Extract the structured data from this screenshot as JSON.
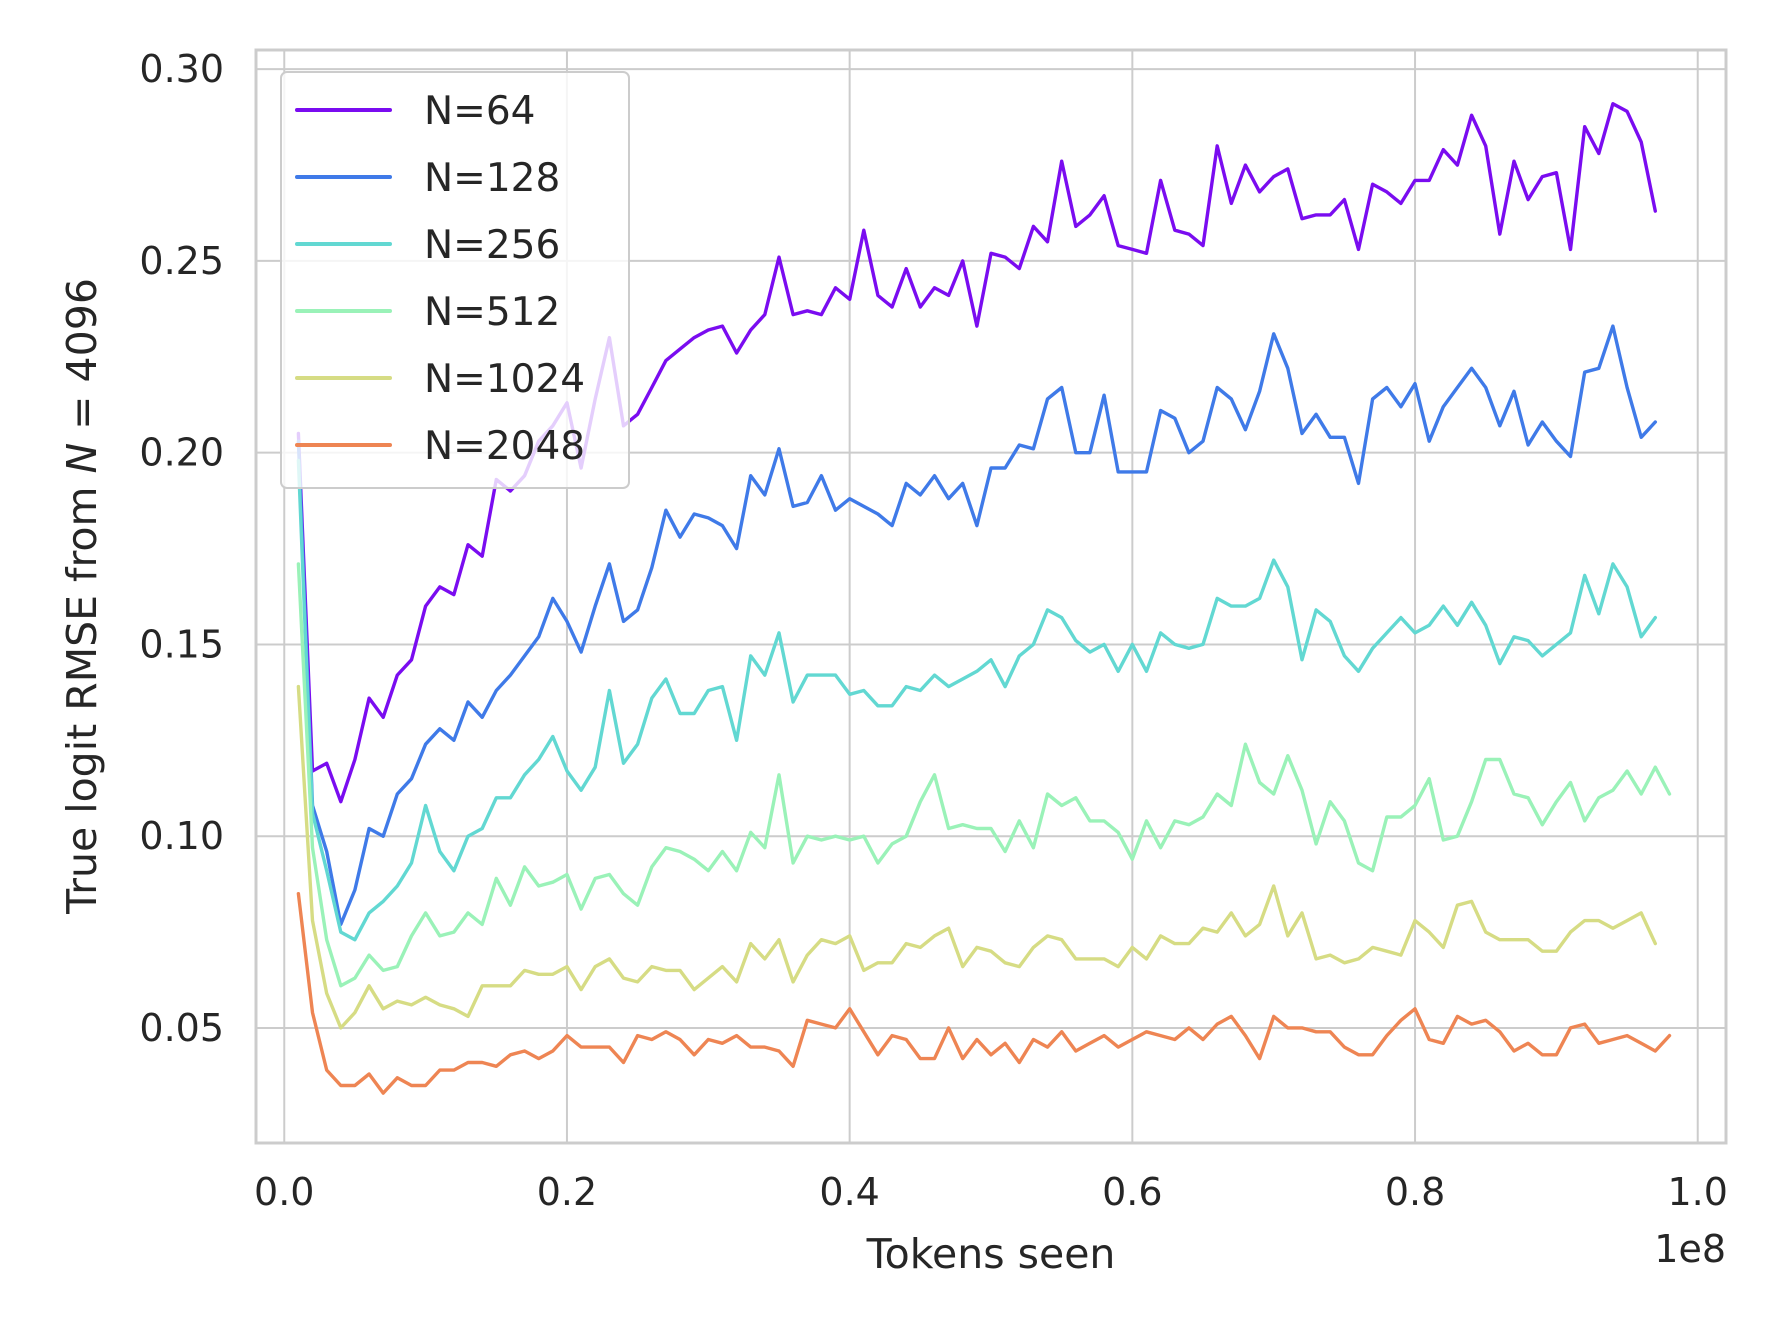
{
  "chart_data": {
    "type": "line",
    "xlabel": "Tokens seen",
    "ylabel_parts": [
      "True logit RMSE from ",
      "N",
      " = 4096"
    ],
    "x_offset_label": "1e8",
    "xlim": [
      -0.02,
      1.02
    ],
    "ylim": [
      0.02,
      0.305
    ],
    "x_ticks": [
      0.0,
      0.2,
      0.4,
      0.6,
      0.8,
      1.0
    ],
    "x_tick_labels": [
      "0.0",
      "0.2",
      "0.4",
      "0.6",
      "0.8",
      "1.0"
    ],
    "y_ticks": [
      0.05,
      0.1,
      0.15,
      0.2,
      0.25,
      0.3
    ],
    "y_tick_labels": [
      "0.05",
      "0.10",
      "0.15",
      "0.20",
      "0.25",
      "0.30"
    ],
    "grid": true,
    "legend_position": "top-left",
    "x_start": 0.01,
    "x_step": 0.01,
    "series": [
      {
        "name": "N=64",
        "color": "#7a0cf0",
        "values": [
          0.205,
          0.117,
          0.119,
          0.109,
          0.12,
          0.136,
          0.131,
          0.142,
          0.146,
          0.16,
          0.165,
          0.163,
          0.176,
          0.173,
          0.193,
          0.19,
          0.194,
          0.203,
          0.207,
          0.213,
          0.196,
          0.214,
          0.23,
          0.207,
          0.21,
          0.217,
          0.224,
          0.227,
          0.23,
          0.232,
          0.233,
          0.226,
          0.232,
          0.236,
          0.251,
          0.236,
          0.237,
          0.236,
          0.243,
          0.24,
          0.258,
          0.241,
          0.238,
          0.248,
          0.238,
          0.243,
          0.241,
          0.25,
          0.233,
          0.252,
          0.251,
          0.248,
          0.259,
          0.255,
          0.276,
          0.259,
          0.262,
          0.267,
          0.254,
          0.253,
          0.252,
          0.271,
          0.258,
          0.257,
          0.254,
          0.28,
          0.265,
          0.275,
          0.268,
          0.272,
          0.274,
          0.261,
          0.262,
          0.262,
          0.266,
          0.253,
          0.27,
          0.268,
          0.265,
          0.271,
          0.271,
          0.279,
          0.275,
          0.288,
          0.28,
          0.257,
          0.276,
          0.266,
          0.272,
          0.273,
          0.253,
          0.285,
          0.278,
          0.291,
          0.289,
          0.281,
          0.263
        ]
      },
      {
        "name": "N=128",
        "color": "#3f7ae8",
        "values": [
          0.203,
          0.108,
          0.096,
          0.077,
          0.086,
          0.102,
          0.1,
          0.111,
          0.115,
          0.124,
          0.128,
          0.125,
          0.135,
          0.131,
          0.138,
          0.142,
          0.147,
          0.152,
          0.162,
          0.156,
          0.148,
          0.16,
          0.171,
          0.156,
          0.159,
          0.17,
          0.185,
          0.178,
          0.184,
          0.183,
          0.181,
          0.175,
          0.194,
          0.189,
          0.201,
          0.186,
          0.187,
          0.194,
          0.185,
          0.188,
          0.186,
          0.184,
          0.181,
          0.192,
          0.189,
          0.194,
          0.188,
          0.192,
          0.181,
          0.196,
          0.196,
          0.202,
          0.201,
          0.214,
          0.217,
          0.2,
          0.2,
          0.215,
          0.195,
          0.195,
          0.195,
          0.211,
          0.209,
          0.2,
          0.203,
          0.217,
          0.214,
          0.206,
          0.216,
          0.231,
          0.222,
          0.205,
          0.21,
          0.204,
          0.204,
          0.192,
          0.214,
          0.217,
          0.212,
          0.218,
          0.203,
          0.212,
          0.217,
          0.222,
          0.217,
          0.207,
          0.216,
          0.202,
          0.208,
          0.203,
          0.199,
          0.221,
          0.222,
          0.233,
          0.217,
          0.204,
          0.208
        ]
      },
      {
        "name": "N=256",
        "color": "#62d8d2",
        "values": [
          0.198,
          0.106,
          0.091,
          0.075,
          0.073,
          0.08,
          0.083,
          0.087,
          0.093,
          0.108,
          0.096,
          0.091,
          0.1,
          0.102,
          0.11,
          0.11,
          0.116,
          0.12,
          0.126,
          0.117,
          0.112,
          0.118,
          0.138,
          0.119,
          0.124,
          0.136,
          0.141,
          0.132,
          0.132,
          0.138,
          0.139,
          0.125,
          0.147,
          0.142,
          0.153,
          0.135,
          0.142,
          0.142,
          0.142,
          0.137,
          0.138,
          0.134,
          0.134,
          0.139,
          0.138,
          0.142,
          0.139,
          0.141,
          0.143,
          0.146,
          0.139,
          0.147,
          0.15,
          0.159,
          0.157,
          0.151,
          0.148,
          0.15,
          0.143,
          0.15,
          0.143,
          0.153,
          0.15,
          0.149,
          0.15,
          0.162,
          0.16,
          0.16,
          0.162,
          0.172,
          0.165,
          0.146,
          0.159,
          0.156,
          0.147,
          0.143,
          0.149,
          0.153,
          0.157,
          0.153,
          0.155,
          0.16,
          0.155,
          0.161,
          0.155,
          0.145,
          0.152,
          0.151,
          0.147,
          0.15,
          0.153,
          0.168,
          0.158,
          0.171,
          0.165,
          0.152,
          0.157
        ]
      },
      {
        "name": "N=512",
        "color": "#9af2b8",
        "values": [
          0.171,
          0.097,
          0.073,
          0.061,
          0.063,
          0.069,
          0.065,
          0.066,
          0.074,
          0.08,
          0.074,
          0.075,
          0.08,
          0.077,
          0.089,
          0.082,
          0.092,
          0.087,
          0.088,
          0.09,
          0.081,
          0.089,
          0.09,
          0.085,
          0.082,
          0.092,
          0.097,
          0.096,
          0.094,
          0.091,
          0.096,
          0.091,
          0.101,
          0.097,
          0.116,
          0.093,
          0.1,
          0.099,
          0.1,
          0.099,
          0.1,
          0.093,
          0.098,
          0.1,
          0.109,
          0.116,
          0.102,
          0.103,
          0.102,
          0.102,
          0.096,
          0.104,
          0.097,
          0.111,
          0.108,
          0.11,
          0.104,
          0.104,
          0.101,
          0.094,
          0.104,
          0.097,
          0.104,
          0.103,
          0.105,
          0.111,
          0.108,
          0.124,
          0.114,
          0.111,
          0.121,
          0.112,
          0.098,
          0.109,
          0.104,
          0.093,
          0.091,
          0.105,
          0.105,
          0.108,
          0.115,
          0.099,
          0.1,
          0.109,
          0.12,
          0.12,
          0.111,
          0.11,
          0.103,
          0.109,
          0.114,
          0.104,
          0.11,
          0.112,
          0.117,
          0.111,
          0.118,
          0.111
        ]
      },
      {
        "name": "N=1024",
        "color": "#d6dc84",
        "values": [
          0.139,
          0.078,
          0.059,
          0.05,
          0.054,
          0.061,
          0.055,
          0.057,
          0.056,
          0.058,
          0.056,
          0.055,
          0.053,
          0.061,
          0.061,
          0.061,
          0.065,
          0.064,
          0.064,
          0.066,
          0.06,
          0.066,
          0.068,
          0.063,
          0.062,
          0.066,
          0.065,
          0.065,
          0.06,
          0.063,
          0.066,
          0.062,
          0.072,
          0.068,
          0.073,
          0.062,
          0.069,
          0.073,
          0.072,
          0.074,
          0.065,
          0.067,
          0.067,
          0.072,
          0.071,
          0.074,
          0.076,
          0.066,
          0.071,
          0.07,
          0.067,
          0.066,
          0.071,
          0.074,
          0.073,
          0.068,
          0.068,
          0.068,
          0.066,
          0.071,
          0.068,
          0.074,
          0.072,
          0.072,
          0.076,
          0.075,
          0.08,
          0.074,
          0.077,
          0.087,
          0.074,
          0.08,
          0.068,
          0.069,
          0.067,
          0.068,
          0.071,
          0.07,
          0.069,
          0.078,
          0.075,
          0.071,
          0.082,
          0.083,
          0.075,
          0.073,
          0.073,
          0.073,
          0.07,
          0.07,
          0.075,
          0.078,
          0.078,
          0.076,
          0.078,
          0.08,
          0.072
        ]
      },
      {
        "name": "N=2048",
        "color": "#ee8553",
        "values": [
          0.085,
          0.054,
          0.039,
          0.035,
          0.035,
          0.038,
          0.033,
          0.037,
          0.035,
          0.035,
          0.039,
          0.039,
          0.041,
          0.041,
          0.04,
          0.043,
          0.044,
          0.042,
          0.044,
          0.048,
          0.045,
          0.045,
          0.045,
          0.041,
          0.048,
          0.047,
          0.049,
          0.047,
          0.043,
          0.047,
          0.046,
          0.048,
          0.045,
          0.045,
          0.044,
          0.04,
          0.052,
          0.051,
          0.05,
          0.055,
          0.049,
          0.043,
          0.048,
          0.047,
          0.042,
          0.042,
          0.05,
          0.042,
          0.047,
          0.043,
          0.046,
          0.041,
          0.047,
          0.045,
          0.049,
          0.044,
          0.046,
          0.048,
          0.045,
          0.047,
          0.049,
          0.048,
          0.047,
          0.05,
          0.047,
          0.051,
          0.053,
          0.048,
          0.042,
          0.053,
          0.05,
          0.05,
          0.049,
          0.049,
          0.045,
          0.043,
          0.043,
          0.048,
          0.052,
          0.055,
          0.047,
          0.046,
          0.053,
          0.051,
          0.052,
          0.049,
          0.044,
          0.046,
          0.043,
          0.043,
          0.05,
          0.051,
          0.046,
          0.047,
          0.048,
          0.046,
          0.044,
          0.048
        ]
      }
    ]
  }
}
